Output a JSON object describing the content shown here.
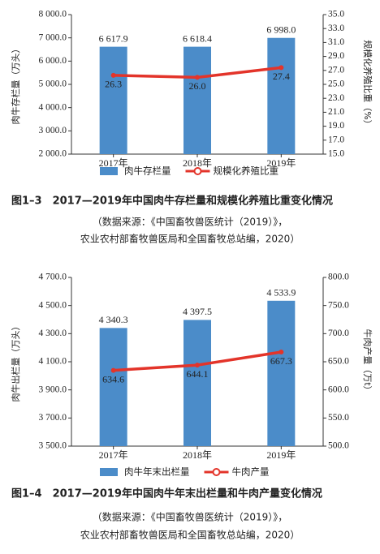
{
  "chart_data": [
    {
      "type": "bar_line",
      "categories": [
        "2017年",
        "2018年",
        "2019年"
      ],
      "y_label": "肉牛存栏量（万头）",
      "y2_label": "规模化养殖比重（%）",
      "ylim": [
        2000,
        8000
      ],
      "yticks": [
        {
          "value": 2000,
          "label": "2 000.0"
        },
        {
          "value": 3000,
          "label": "3 000.0"
        },
        {
          "value": 4000,
          "label": "4 000.0"
        },
        {
          "value": 5000,
          "label": "5 000.0"
        },
        {
          "value": 6000,
          "label": "6 000.0"
        },
        {
          "value": 7000,
          "label": "7 000.0"
        },
        {
          "value": 8000,
          "label": "8 000.0"
        }
      ],
      "y2lim": [
        15,
        35
      ],
      "y2ticks": [
        {
          "value": 15,
          "label": "15.0"
        },
        {
          "value": 17,
          "label": "17.0"
        },
        {
          "value": 19,
          "label": "19.0"
        },
        {
          "value": 21,
          "label": "21.0"
        },
        {
          "value": 23,
          "label": "23.0"
        },
        {
          "value": 25,
          "label": "25.0"
        },
        {
          "value": 27,
          "label": "27.0"
        },
        {
          "value": 29,
          "label": "29.0"
        },
        {
          "value": 31,
          "label": "31.0"
        },
        {
          "value": 33,
          "label": "33.0"
        },
        {
          "value": 35,
          "label": "35.0"
        }
      ],
      "series": [
        {
          "name": "肉牛存栏量",
          "kind": "bar",
          "color": "#4b8cc9",
          "values": [
            6617.9,
            6618.4,
            6998.0
          ],
          "value_labels": [
            "6 617.9",
            "6 618.4",
            "6 998.0"
          ]
        },
        {
          "name": "规模化养殖比重",
          "kind": "line",
          "axis": "y2",
          "color": "#e3342a",
          "values": [
            26.3,
            26.0,
            27.4
          ],
          "value_labels": [
            "26.3",
            "26.0",
            "27.4"
          ]
        }
      ],
      "caption": "图1–3　2017—2019年中国肉牛存栏量和规模化养殖比重变化情况",
      "source": [
        "（数据来源：《中国畜牧兽医统计（2019）》，",
        "农业农村部畜牧兽医局和全国畜牧总站编，2020）"
      ]
    },
    {
      "type": "bar_line",
      "categories": [
        "2017年",
        "2018年",
        "2019年"
      ],
      "y_label": "肉牛出栏量（万头）",
      "y2_label": "牛肉产量（万t）",
      "ylim": [
        3500,
        4700
      ],
      "yticks": [
        {
          "value": 3500,
          "label": "3 500.0"
        },
        {
          "value": 3700,
          "label": "3 700.0"
        },
        {
          "value": 3900,
          "label": "3 900.0"
        },
        {
          "value": 4100,
          "label": "4 100.0"
        },
        {
          "value": 4300,
          "label": "4 300.0"
        },
        {
          "value": 4500,
          "label": "4 500.0"
        },
        {
          "value": 4700,
          "label": "4 700.0"
        }
      ],
      "y2lim": [
        500,
        800
      ],
      "y2ticks": [
        {
          "value": 500,
          "label": "500.0"
        },
        {
          "value": 550,
          "label": "550.0"
        },
        {
          "value": 600,
          "label": "600.0"
        },
        {
          "value": 650,
          "label": "650.0"
        },
        {
          "value": 700,
          "label": "700.0"
        },
        {
          "value": 750,
          "label": "750.0"
        },
        {
          "value": 800,
          "label": "800.0"
        }
      ],
      "series": [
        {
          "name": "肉牛年末出栏量",
          "kind": "bar",
          "color": "#4b8cc9",
          "values": [
            4340.3,
            4397.5,
            4533.9
          ],
          "value_labels": [
            "4 340.3",
            "4 397.5",
            "4 533.9"
          ]
        },
        {
          "name": "牛肉产量",
          "kind": "line",
          "axis": "y2",
          "color": "#e3342a",
          "values": [
            634.6,
            644.1,
            667.3
          ],
          "value_labels": [
            "634.6",
            "644.1",
            "667.3"
          ]
        }
      ],
      "caption": "图1–4　2017—2019年中国肉牛年末出栏量和牛肉产量变化情况",
      "source": [
        "（数据来源：《中国畜牧兽医统计（2019）》，",
        "农业农村部畜牧兽医局和全国畜牧总站编，2020）"
      ]
    }
  ]
}
